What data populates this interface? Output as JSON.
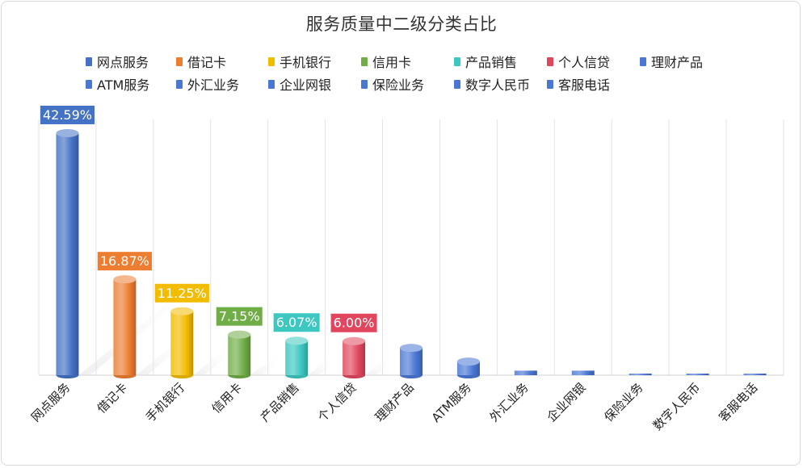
{
  "chart_data": {
    "type": "bar",
    "title": "服务质量中二级分类占比",
    "categories": [
      "网点服务",
      "借记卡",
      "手机银行",
      "信用卡",
      "产品销售",
      "个人信贷",
      "理财产品",
      "ATM服务",
      "外汇业务",
      "企业网银",
      "保险业务",
      "数字人民币",
      "客服电话"
    ],
    "values": [
      42.59,
      16.87,
      11.25,
      7.15,
      6.07,
      6.0,
      4.8,
      2.4,
      0.8,
      0.8,
      0.2,
      0.2,
      0.2
    ],
    "data_labels": [
      "42.59%",
      "16.87%",
      "11.25%",
      "7.15%",
      "6.07%",
      "6.00%",
      "",
      "",
      "",
      "",
      "",
      "",
      ""
    ],
    "colors": [
      "#4472C4",
      "#ED7D31",
      "#F2BC00",
      "#70AD47",
      "#3CC8C0",
      "#E0475E",
      "#4A77D4",
      "#4A77D4",
      "#4A77D4",
      "#4A77D4",
      "#4A77D4",
      "#4A77D4",
      "#4A77D4"
    ],
    "legend": [
      "网点服务",
      "借记卡",
      "手机银行",
      "信用卡",
      "产品销售",
      "个人信贷",
      "理财产品",
      "ATM服务",
      "外汇业务",
      "企业网银",
      "保险业务",
      "数字人民币",
      "客服电话"
    ],
    "legend_position": "top",
    "ylim": [
      0,
      45
    ],
    "grid": "vertical"
  }
}
